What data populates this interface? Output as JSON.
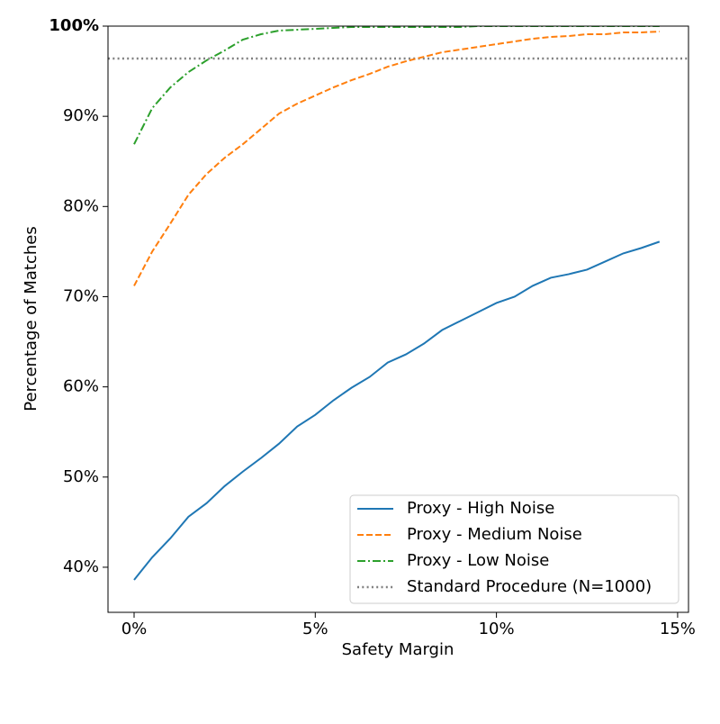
{
  "chart_data": {
    "type": "line",
    "x_label": "Safety Margin",
    "y_label": "Percentage of Matches",
    "x": [
      0,
      0.5,
      1,
      1.5,
      2,
      2.5,
      3,
      3.5,
      4,
      4.5,
      5,
      5.5,
      6,
      6.5,
      7,
      7.5,
      8,
      8.5,
      9,
      9.5,
      10,
      10.5,
      11,
      11.5,
      12,
      12.5,
      13,
      13.5,
      14,
      14.5
    ],
    "series": [
      {
        "name": "Proxy - High Noise",
        "color": "#1f77b4",
        "dash": "solid",
        "values": [
          38.6,
          41.1,
          43.2,
          45.6,
          47.1,
          49.0,
          50.6,
          52.1,
          53.7,
          55.6,
          56.9,
          58.5,
          59.9,
          61.1,
          62.7,
          63.6,
          64.8,
          66.3,
          67.3,
          68.3,
          69.3,
          70.0,
          71.2,
          72.1,
          72.5,
          73.0,
          73.9,
          74.8,
          75.4,
          76.1
        ]
      },
      {
        "name": "Proxy - Medium Noise",
        "color": "#ff7f0e",
        "dash": "dashed",
        "values": [
          71.2,
          75.0,
          78.1,
          81.3,
          83.6,
          85.4,
          86.9,
          88.6,
          90.3,
          91.4,
          92.3,
          93.2,
          94.0,
          94.7,
          95.5,
          96.1,
          96.6,
          97.1,
          97.4,
          97.7,
          98.0,
          98.3,
          98.6,
          98.8,
          98.9,
          99.1,
          99.1,
          99.3,
          99.3,
          99.4
        ]
      },
      {
        "name": "Proxy - Low Noise",
        "color": "#2ca02c",
        "dash": "dashdot",
        "values": [
          86.9,
          90.9,
          93.2,
          94.9,
          96.2,
          97.3,
          98.5,
          99.1,
          99.5,
          99.6,
          99.7,
          99.8,
          99.9,
          99.9,
          99.9,
          99.9,
          99.9,
          99.9,
          99.9,
          100,
          100,
          100,
          100,
          100,
          100,
          100,
          100,
          100,
          100,
          100
        ]
      }
    ],
    "reference": {
      "name": "Standard Procedure (N=1000)",
      "color": "#808080",
      "dash": "dotted",
      "value": 96.4
    },
    "xlim": [
      -0.72,
      15.3
    ],
    "ylim": [
      35,
      100
    ],
    "xticks": [
      {
        "value": 0,
        "label": "0%"
      },
      {
        "value": 5,
        "label": "5%"
      },
      {
        "value": 10,
        "label": "10%"
      },
      {
        "value": 15,
        "label": "15%"
      }
    ],
    "yticks": [
      {
        "value": 40,
        "label": "40%"
      },
      {
        "value": 50,
        "label": "50%"
      },
      {
        "value": 60,
        "label": "60%"
      },
      {
        "value": 70,
        "label": "70%"
      },
      {
        "value": 80,
        "label": "80%"
      },
      {
        "value": 90,
        "label": "90%"
      },
      {
        "value": 100,
        "label": "100%"
      }
    ],
    "legend": "lower right"
  }
}
